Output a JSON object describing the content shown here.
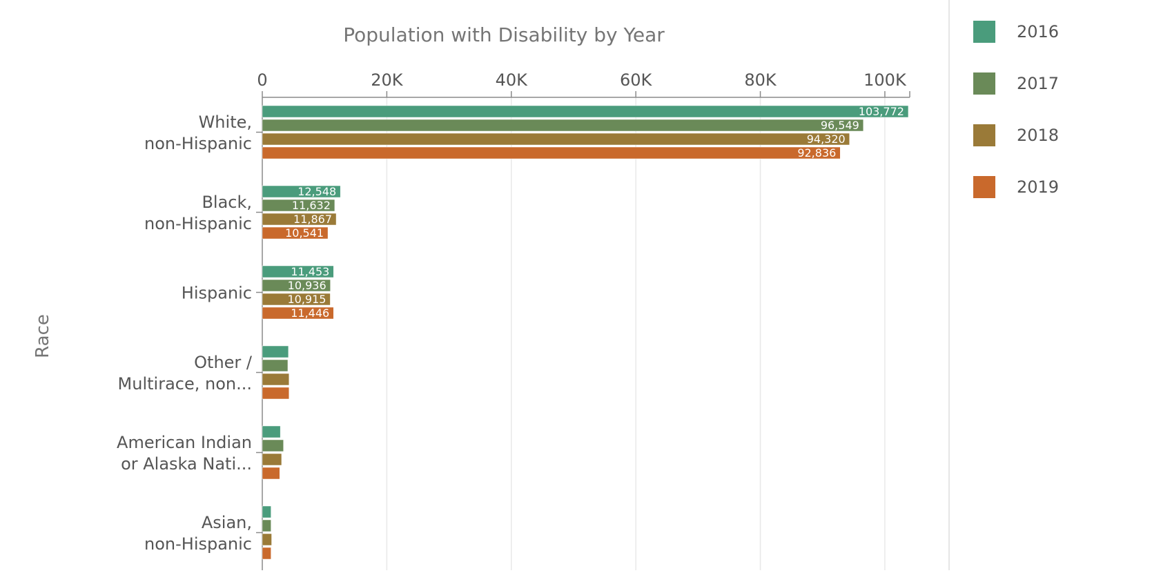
{
  "chart_data": {
    "type": "bar",
    "orientation": "horizontal",
    "title": "Population with Disability by Year",
    "ylabel": "Race",
    "xlabel": "",
    "xlim": [
      0,
      104000
    ],
    "x_ticks": [
      {
        "value": 0,
        "label": "0"
      },
      {
        "value": 20000,
        "label": "20K"
      },
      {
        "value": 40000,
        "label": "40K"
      },
      {
        "value": 60000,
        "label": "60K"
      },
      {
        "value": 80000,
        "label": "80K"
      },
      {
        "value": 100000,
        "label": "100K"
      }
    ],
    "x_axis_position": "top",
    "grid": true,
    "legend_position": "right",
    "categories": [
      [
        "White,",
        "non-Hispanic"
      ],
      [
        "Black,",
        "non-Hispanic"
      ],
      [
        "Hispanic"
      ],
      [
        "Other /",
        "Multirace, non..."
      ],
      [
        "American Indian",
        "or Alaska Nati..."
      ],
      [
        "Asian,",
        "non-Hispanic"
      ]
    ],
    "series": [
      {
        "name": "2016",
        "color": "#4a9c7c",
        "values": [
          103772,
          12548,
          11453,
          4200,
          2900,
          1400
        ],
        "labels": [
          "103,772",
          "12,548",
          "11,453",
          "",
          "",
          ""
        ]
      },
      {
        "name": "2017",
        "color": "#6a8a58",
        "values": [
          96549,
          11632,
          10936,
          4100,
          3400,
          1400
        ],
        "labels": [
          "96,549",
          "11,632",
          "10,936",
          "",
          "",
          ""
        ]
      },
      {
        "name": "2018",
        "color": "#9a7a38",
        "values": [
          94320,
          11867,
          10915,
          4300,
          3100,
          1500
        ],
        "labels": [
          "94,320",
          "11,867",
          "10,915",
          "",
          "",
          ""
        ]
      },
      {
        "name": "2019",
        "color": "#c9692c",
        "values": [
          92836,
          10541,
          11446,
          4300,
          2800,
          1400
        ],
        "labels": [
          "92,836",
          "10,541",
          "11,446",
          "",
          "",
          ""
        ]
      }
    ]
  }
}
